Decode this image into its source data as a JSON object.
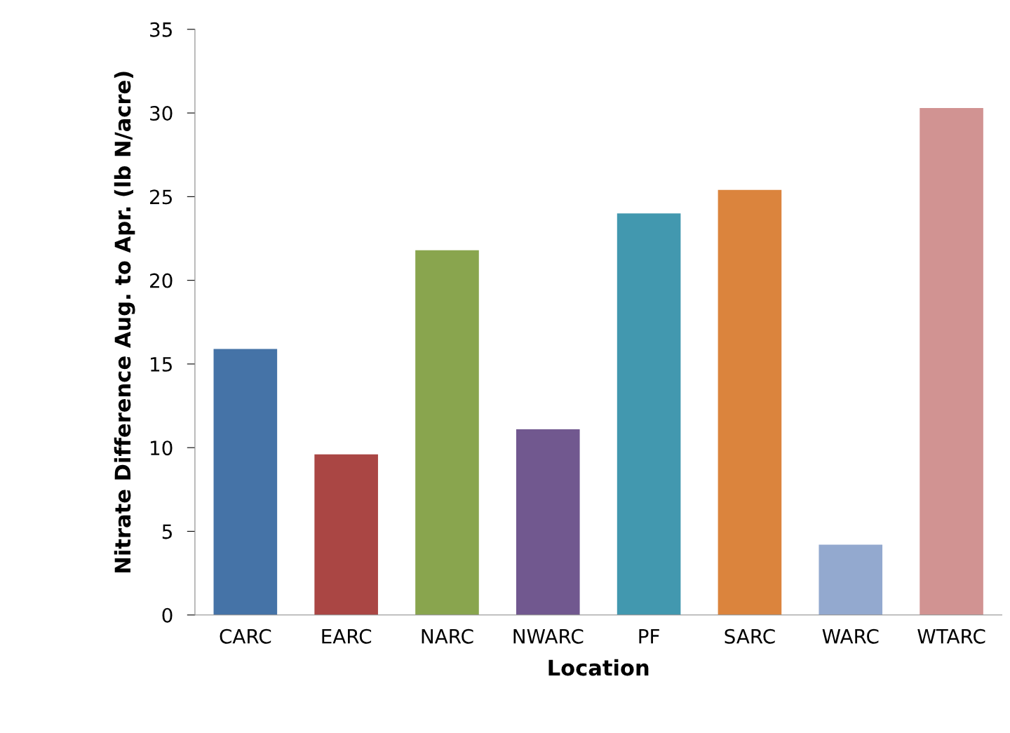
{
  "chart_data": {
    "type": "bar",
    "xlabel": "Location",
    "ylabel": "Nitrate Difference Aug. to Apr. (lb N/acre)",
    "categories": [
      "CARC",
      "EARC",
      "NARC",
      "NWARC",
      "PF",
      "SARC",
      "WARC",
      "WTARC"
    ],
    "values": [
      15.9,
      9.6,
      21.8,
      11.1,
      24.0,
      25.4,
      4.2,
      30.3
    ],
    "colors": [
      "#4573a7",
      "#aa4644",
      "#89a54e",
      "#71588f",
      "#4298af",
      "#db843d",
      "#93a9cf",
      "#d19392"
    ],
    "ylim": [
      0,
      35
    ],
    "yticks": [
      0,
      5,
      10,
      15,
      20,
      25,
      30,
      35
    ],
    "grid": false,
    "legend": false
  }
}
